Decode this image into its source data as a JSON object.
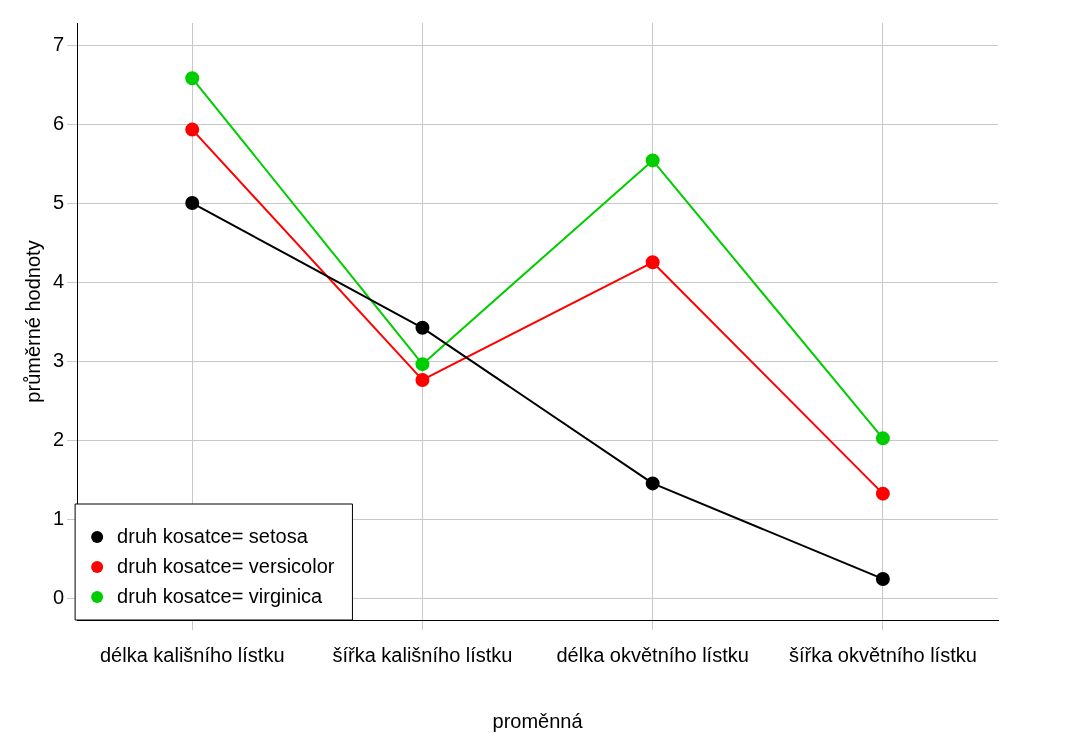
{
  "chart_data": {
    "type": "line",
    "xlabel": "proměnná",
    "ylabel": "průměrné hodnoty",
    "categories": [
      "délka kališního lístku",
      "šířka kališního lístku",
      "délka okvětního lístku",
      "šířka okvětního lístku"
    ],
    "series": [
      {
        "name": "druh kosatce= setosa",
        "color": "#000000",
        "values": [
          5.01,
          3.43,
          1.46,
          0.25
        ]
      },
      {
        "name": "druh kosatce= versicolor",
        "color": "#ff0000",
        "values": [
          5.94,
          2.77,
          4.26,
          1.33
        ]
      },
      {
        "name": "druh kosatce= virginica",
        "color": "#00cd00",
        "values": [
          6.59,
          2.97,
          5.55,
          2.03
        ]
      }
    ],
    "ylim": [
      -0.27,
      7.29
    ],
    "yticks": [
      0,
      1,
      2,
      3,
      4,
      5,
      6,
      7
    ],
    "grid": true,
    "legend": "bottom left",
    "marker": "circle",
    "line_style": "solid"
  }
}
